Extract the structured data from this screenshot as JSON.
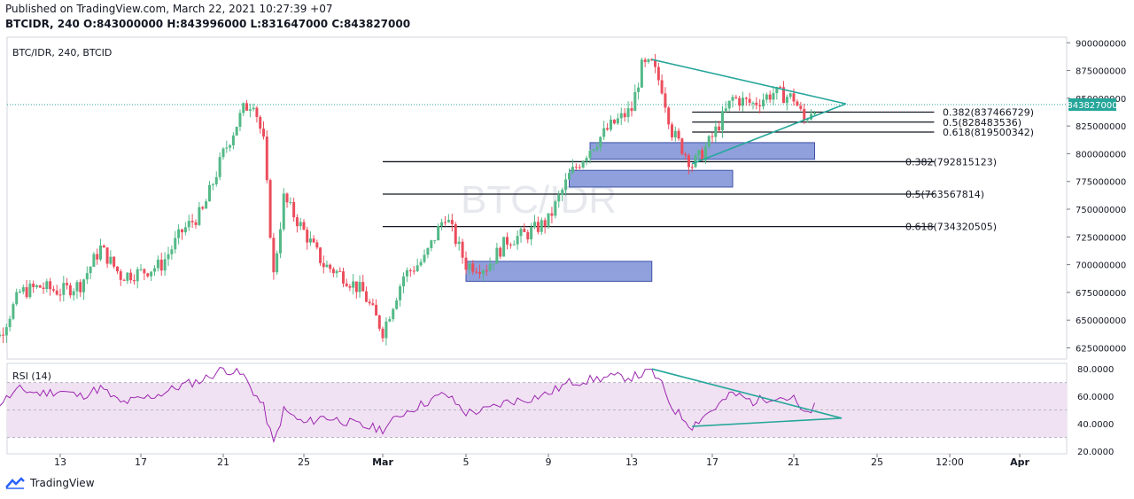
{
  "header": {
    "published": "Published on TradingView.com, March 22, 2021 10:27:39 +07",
    "symbol": "BTCIDR, 240",
    "o_label": "O:",
    "o_value": "843000000",
    "h_label": "H:",
    "h_value": "843996000",
    "l_label": "L:",
    "l_value": "831647000",
    "c_label": "C:",
    "c_value": "843827000"
  },
  "main_pane": {
    "legend": "BTC/IDR, 240, BTCID",
    "watermark": "BTC/IDR",
    "current_price_label": "843827000"
  },
  "rsi_pane": {
    "legend": "RSI (14)"
  },
  "footer": {
    "brand": "TradingView"
  },
  "colors": {
    "up": "#53b987",
    "down": "#eb4d5c",
    "zone_fill": "#7b8fd6",
    "zone_stroke": "#3f51a8",
    "trendline": "#26a69a",
    "rsi_line": "#9c27b0",
    "rsi_band": "#f1e2f3",
    "fib_line": "#131722",
    "price_tag": "#26a69a"
  },
  "chart_data": [
    {
      "type": "candlestick",
      "title": "BTC/IDR, 240, BTCID",
      "x_ticks": [
        "13",
        "17",
        "21",
        "25",
        "Mar",
        "5",
        "9",
        "13",
        "17",
        "21",
        "25",
        "12:00",
        "Apr"
      ],
      "y_ticks": [
        "900000000",
        "875000000",
        "850000000",
        "825000000",
        "800000000",
        "775000000",
        "750000000",
        "725000000",
        "700000000",
        "675000000",
        "650000000",
        "625000000"
      ],
      "ylim": [
        615000000,
        905000000
      ],
      "close_path": [
        [
          "Feb 9",
          655000000
        ],
        [
          "Feb 10",
          636000000
        ],
        [
          "Feb 11",
          675000000
        ],
        [
          "Feb 12",
          680000000
        ],
        [
          "Feb 13",
          676000000
        ],
        [
          "Feb 14",
          682000000
        ],
        [
          "Feb 15",
          715000000
        ],
        [
          "Feb 16",
          690000000
        ],
        [
          "Feb 17",
          693000000
        ],
        [
          "Feb 18",
          700000000
        ],
        [
          "Feb 19",
          730000000
        ],
        [
          "Feb 20",
          748000000
        ],
        [
          "Feb 21",
          800000000
        ],
        [
          "Feb 22",
          840000000
        ],
        [
          "Feb 22 12h",
          848000000
        ],
        [
          "Feb 23",
          810000000
        ],
        [
          "Feb 23 12h",
          690000000
        ],
        [
          "Feb 24",
          760000000
        ],
        [
          "Feb 25",
          730000000
        ],
        [
          "Feb 26",
          700000000
        ],
        [
          "Feb 27",
          690000000
        ],
        [
          "Feb 28",
          675000000
        ],
        [
          "Mar 1",
          640000000
        ],
        [
          "Mar 2",
          690000000
        ],
        [
          "Mar 3",
          705000000
        ],
        [
          "Mar 4",
          745000000
        ],
        [
          "Mar 5",
          700000000
        ],
        [
          "Mar 6",
          698000000
        ],
        [
          "Mar 7",
          722000000
        ],
        [
          "Mar 8",
          728000000
        ],
        [
          "Mar 9",
          740000000
        ],
        [
          "Mar 10",
          780000000
        ],
        [
          "Mar 11",
          805000000
        ],
        [
          "Mar 12",
          825000000
        ],
        [
          "Mar 13",
          840000000
        ],
        [
          "Mar 13 12h",
          878000000
        ],
        [
          "Mar 14",
          880000000
        ],
        [
          "Mar 14 12h",
          860000000
        ],
        [
          "Mar 15",
          820000000
        ],
        [
          "Mar 16",
          790000000
        ],
        [
          "Mar 16 12h",
          800000000
        ],
        [
          "Mar 17",
          815000000
        ],
        [
          "Mar 18",
          850000000
        ],
        [
          "Mar 19",
          845000000
        ],
        [
          "Mar 20",
          855000000
        ],
        [
          "Mar 21",
          850000000
        ],
        [
          "Mar 21 12h",
          830000000
        ],
        [
          "Mar 22",
          843827000
        ]
      ],
      "fibonacci": [
        {
          "label": "0.382(837466729)",
          "value": 837466729,
          "from": "Mar 16",
          "to": "Mar 27"
        },
        {
          "label": "0.5(828483536)",
          "value": 828483536,
          "from": "Mar 16",
          "to": "Mar 27"
        },
        {
          "label": "0.618(819500342)",
          "value": 819500342,
          "from": "Mar 16",
          "to": "Mar 27"
        },
        {
          "label": "0.382(792815123)",
          "value": 792815123,
          "from": "Mar 1",
          "to": "Mar 27"
        },
        {
          "label": "0.5(763567814)",
          "value": 763567814,
          "from": "Mar 1",
          "to": "Mar 27"
        },
        {
          "label": "0.618(734320505)",
          "value": 734320505,
          "from": "Mar 1",
          "to": "Mar 27"
        }
      ],
      "zones": [
        {
          "from": "Mar 11",
          "to": "Mar 22",
          "low": 795000000,
          "high": 810000000
        },
        {
          "from": "Mar 10",
          "to": "Mar 18",
          "low": 770000000,
          "high": 785000000
        },
        {
          "from": "Mar 5",
          "to": "Mar 14",
          "low": 685000000,
          "high": 703000000
        }
      ],
      "triangle": {
        "apex": [
          "Mar 23.5",
          845000000
        ],
        "top_start": [
          "Mar 14",
          885000000
        ],
        "bottom_start": [
          "Mar 16",
          791000000
        ]
      },
      "last_price": 843827000
    },
    {
      "type": "line",
      "title": "RSI (14)",
      "y_ticks": [
        "80.0000",
        "60.0000",
        "40.0000",
        "20.0000"
      ],
      "ylim": [
        18,
        84
      ],
      "bands": [
        30,
        70
      ],
      "series": [
        {
          "values": [
            [
              "Feb 9",
              58
            ],
            [
              "Feb 10",
              55
            ],
            [
              "Feb 11",
              65
            ],
            [
              "Feb 12",
              62
            ],
            [
              "Feb 13",
              64
            ],
            [
              "Feb 14",
              60
            ],
            [
              "Feb 15",
              66
            ],
            [
              "Feb 16",
              55
            ],
            [
              "Feb 17",
              58
            ],
            [
              "Feb 18",
              62
            ],
            [
              "Feb 19",
              68
            ],
            [
              "Feb 20",
              72
            ],
            [
              "Feb 21",
              80
            ],
            [
              "Feb 21 12h",
              78
            ],
            [
              "Feb 22",
              75
            ],
            [
              "Feb 23",
              52
            ],
            [
              "Feb 23 12h",
              25
            ],
            [
              "Feb 24",
              50
            ],
            [
              "Feb 25",
              40
            ],
            [
              "Feb 26",
              45
            ],
            [
              "Feb 27",
              42
            ],
            [
              "Feb 28",
              38
            ],
            [
              "Mar 1",
              36
            ],
            [
              "Mar 2",
              48
            ],
            [
              "Mar 3",
              55
            ],
            [
              "Mar 4",
              62
            ],
            [
              "Mar 5",
              48
            ],
            [
              "Mar 6",
              50
            ],
            [
              "Mar 7",
              56
            ],
            [
              "Mar 8",
              58
            ],
            [
              "Mar 9",
              62
            ],
            [
              "Mar 10",
              70
            ],
            [
              "Mar 11",
              72
            ],
            [
              "Mar 12",
              74
            ],
            [
              "Mar 13",
              74
            ],
            [
              "Mar 14",
              78
            ],
            [
              "Mar 14 12h",
              68
            ],
            [
              "Mar 15",
              52
            ],
            [
              "Mar 16",
              38
            ],
            [
              "Mar 16 12h",
              45
            ],
            [
              "Mar 17",
              50
            ],
            [
              "Mar 18",
              62
            ],
            [
              "Mar 19",
              56
            ],
            [
              "Mar 20",
              60
            ],
            [
              "Mar 21",
              58
            ],
            [
              "Mar 21 12h",
              46
            ],
            [
              "Mar 22",
              52
            ]
          ]
        }
      ],
      "triangle": {
        "apex": [
          "Mar 23.3",
          44
        ],
        "top_start": [
          "Mar 14",
          80
        ],
        "bottom_start": [
          "Mar 16",
          38
        ]
      }
    }
  ]
}
